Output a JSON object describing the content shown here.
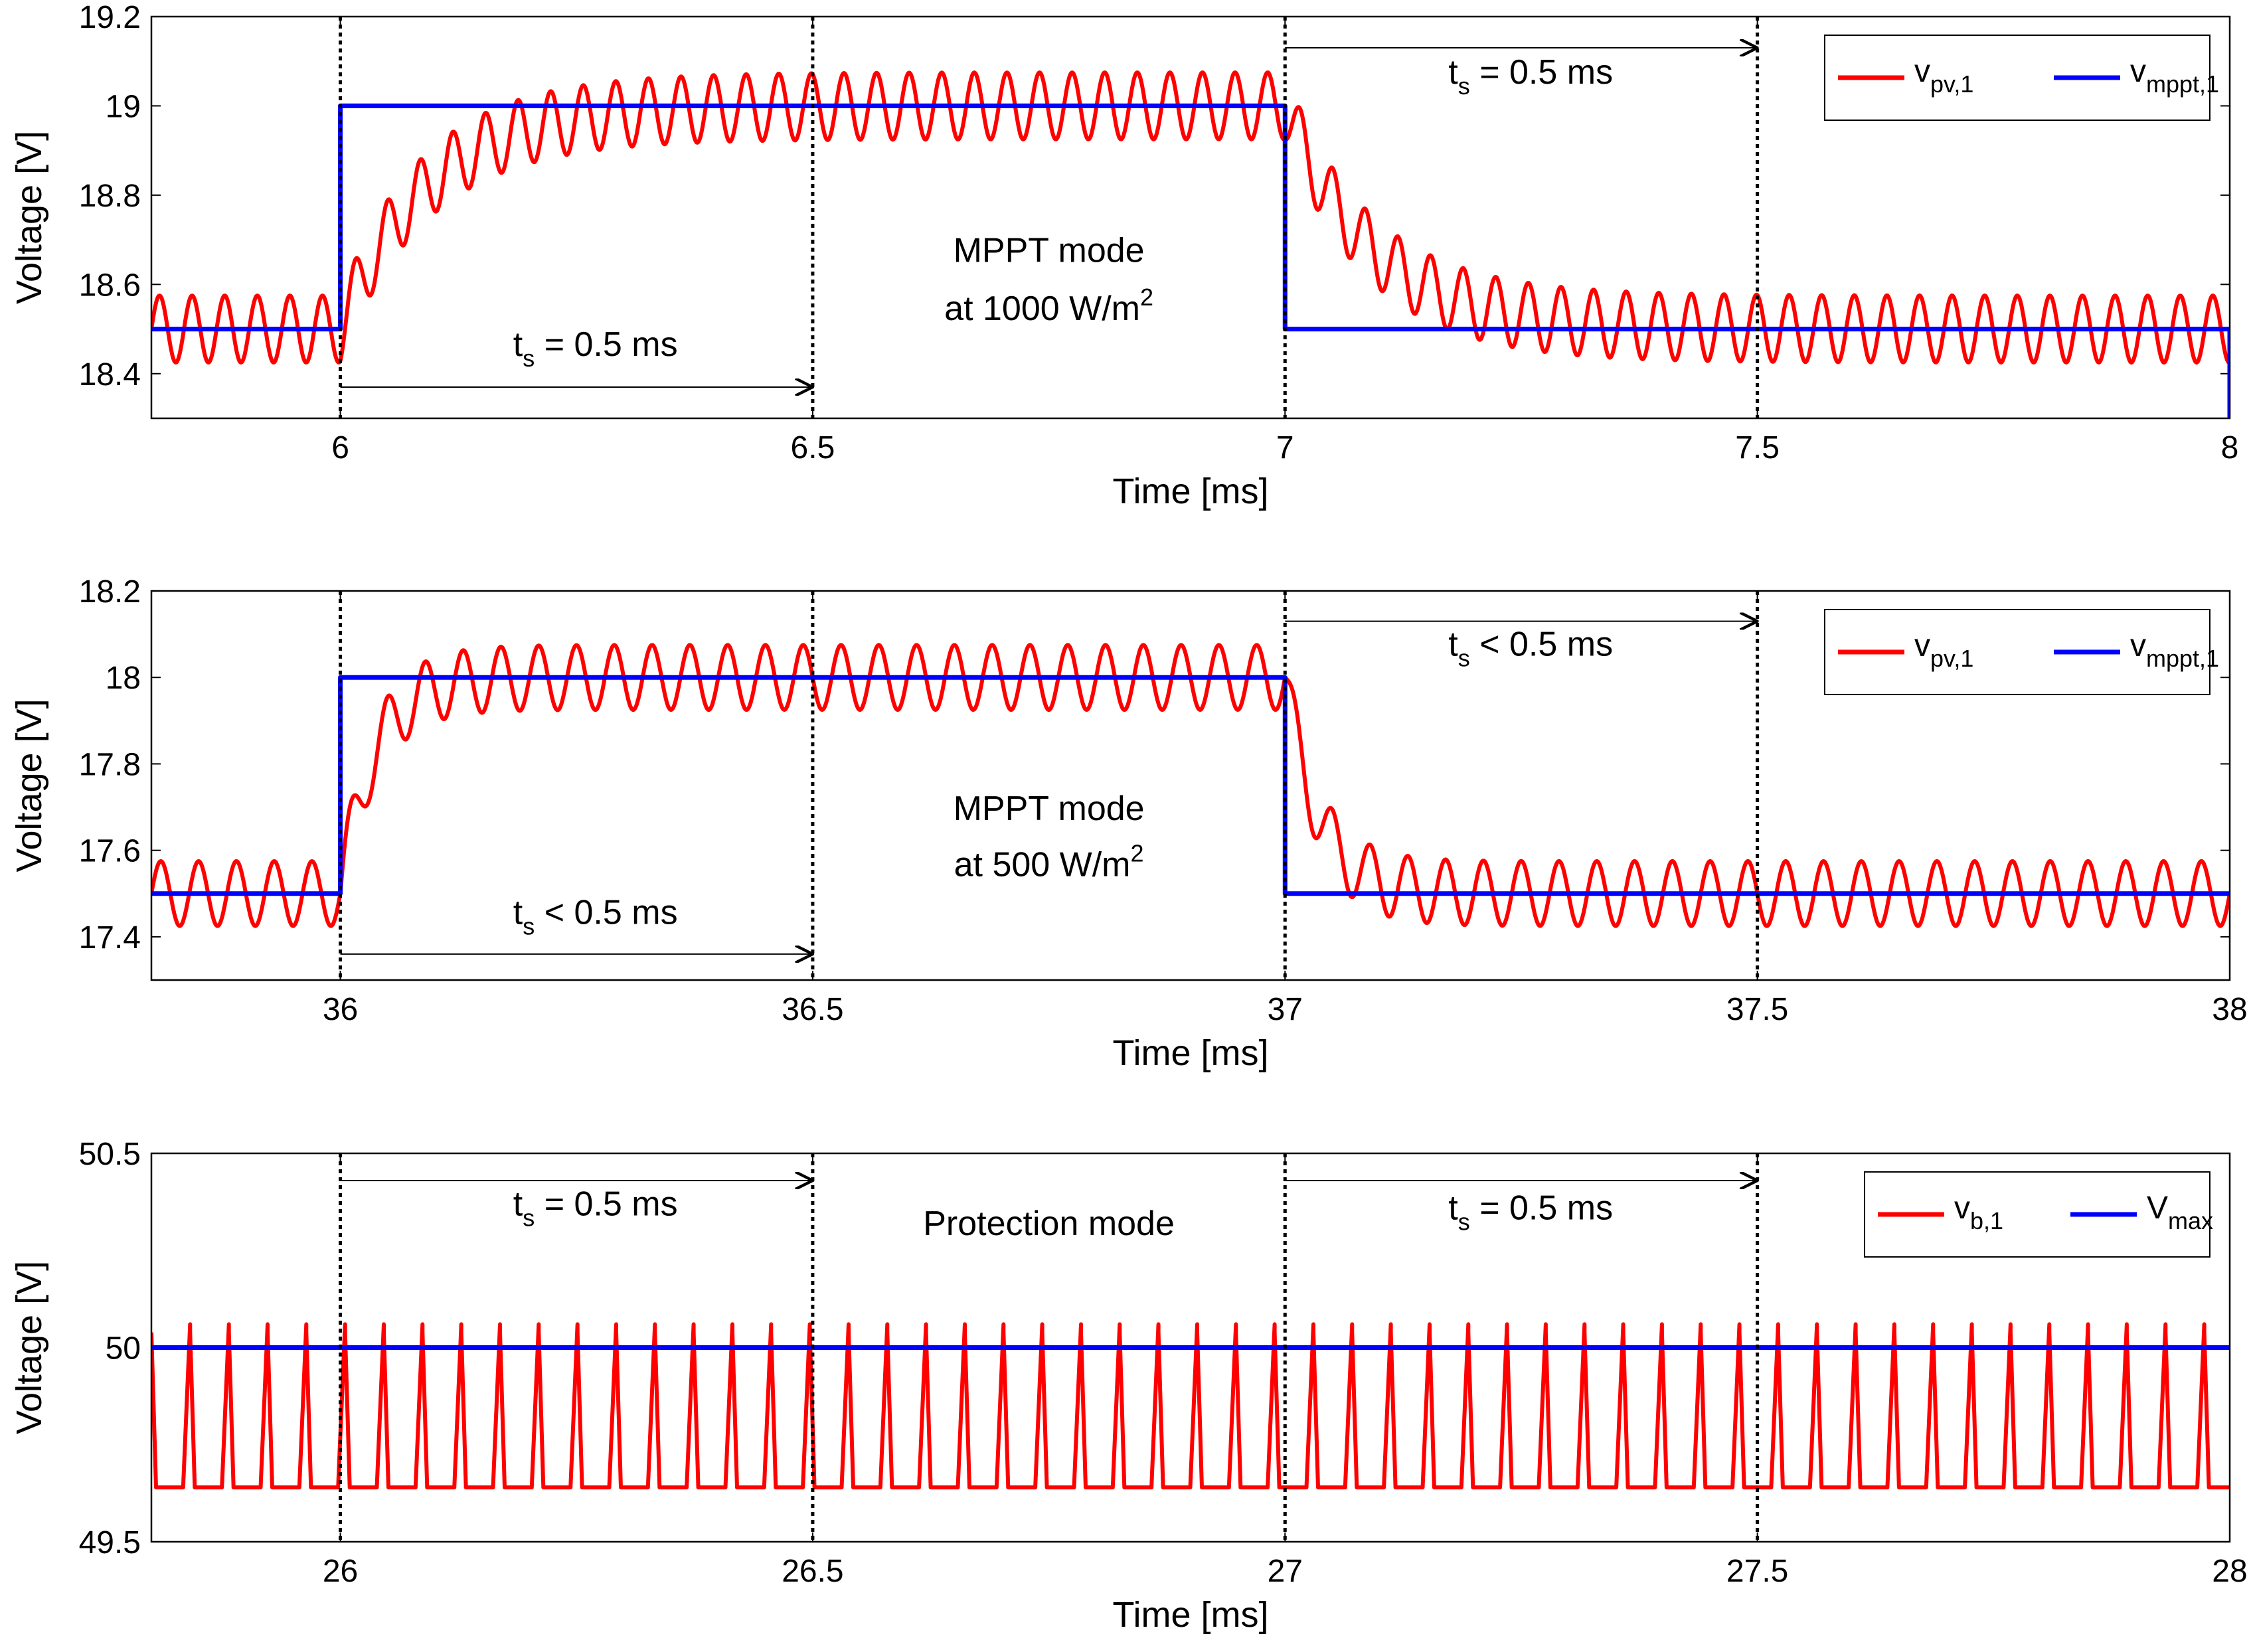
{
  "chart_data": [
    {
      "type": "line",
      "panel": "top",
      "xlabel": "Time [ms]",
      "ylabel": "Voltage [V]",
      "xlim": [
        5.8,
        8.0
      ],
      "ylim": [
        18.3,
        19.2
      ],
      "xticks": [
        6,
        6.5,
        7,
        7.5,
        8
      ],
      "xtick_labels": [
        "6",
        "6.5",
        "7",
        "7.5",
        "8"
      ],
      "yticks": [
        18.4,
        18.6,
        18.8,
        19.0,
        19.2
      ],
      "ytick_labels": [
        "18.4",
        "18.6",
        "18.8",
        "19",
        "19.2"
      ],
      "vlines": [
        6,
        6.5,
        7,
        7.5
      ],
      "legend": {
        "position": "top-right",
        "entries": [
          {
            "base": "v",
            "sub": "pv,1",
            "color": "#ff0000"
          },
          {
            "base": "v",
            "sub": "mppt,1",
            "color": "#0000ff"
          }
        ]
      },
      "series": [
        {
          "name": "v_pv,1",
          "color": "#ff0000",
          "kind": "oscillation",
          "steps": [
            {
              "t": 5.8,
              "v": 18.5
            },
            {
              "t": 6.0,
              "v": 19.0
            },
            {
              "t": 7.0,
              "v": 18.5
            }
          ],
          "amplitude": 0.075,
          "period_ms": 0.0345,
          "tau_ms": 0.09,
          "start_level": 18.5
        },
        {
          "name": "v_mppt,1",
          "color": "#0000ff",
          "kind": "step",
          "points": [
            [
              5.8,
              18.5
            ],
            [
              6.0,
              18.5
            ],
            [
              6.0,
              19.0
            ],
            [
              7.0,
              19.0
            ],
            [
              7.0,
              18.5
            ],
            [
              8.0,
              18.5
            ],
            [
              8.0,
              18.3
            ]
          ]
        }
      ],
      "annotations": [
        {
          "id": "ts1",
          "base": "t",
          "sub": "s",
          "rest": " = 0.5 ms",
          "arrow_from": 6.0,
          "arrow_to": 6.5,
          "arrow_y": 18.37,
          "text_x": 6.27,
          "text_y": 18.44
        },
        {
          "id": "ts2",
          "base": "t",
          "sub": "s",
          "rest": " = 0.5 ms",
          "arrow_from": 7.0,
          "arrow_to": 7.5,
          "arrow_y": 19.13,
          "text_x": 7.26,
          "text_y": 19.05
        },
        {
          "id": "mode1",
          "line1": "MPPT mode",
          "line2": "at 1000 W/m",
          "sup": "2",
          "text_x": 6.75,
          "text_y1": 18.65,
          "text_y2": 18.52
        }
      ]
    },
    {
      "type": "line",
      "panel": "middle",
      "xlabel": "Time [ms]",
      "ylabel": "Voltage [V]",
      "xlim": [
        35.8,
        38.0
      ],
      "ylim": [
        17.3,
        18.2
      ],
      "xticks": [
        36,
        36.5,
        37,
        37.5,
        38
      ],
      "xtick_labels": [
        "36",
        "36.5",
        "37",
        "37.5",
        "38"
      ],
      "yticks": [
        17.4,
        17.6,
        17.8,
        18.0,
        18.2
      ],
      "ytick_labels": [
        "17.4",
        "17.6",
        "17.8",
        "18",
        "18.2"
      ],
      "vlines": [
        36,
        36.5,
        37,
        37.5
      ],
      "legend": {
        "position": "top-right",
        "entries": [
          {
            "base": "v",
            "sub": "pv,1",
            "color": "#ff0000"
          },
          {
            "base": "v",
            "sub": "mppt,1",
            "color": "#0000ff"
          }
        ]
      },
      "series": [
        {
          "name": "v_pv,1",
          "color": "#ff0000",
          "kind": "oscillation",
          "steps": [
            {
              "t": 35.8,
              "v": 17.5
            },
            {
              "t": 36.0,
              "v": 18.0
            },
            {
              "t": 37.0,
              "v": 17.5
            }
          ],
          "amplitude": 0.075,
          "period_ms": 0.04,
          "tau_ms": 0.035,
          "start_level": 17.5
        },
        {
          "name": "v_mppt,1",
          "color": "#0000ff",
          "kind": "step",
          "points": [
            [
              35.8,
              17.5
            ],
            [
              36.0,
              17.5
            ],
            [
              36.0,
              18.0
            ],
            [
              37.0,
              18.0
            ],
            [
              37.0,
              17.5
            ],
            [
              38.0,
              17.5
            ]
          ]
        }
      ],
      "annotations": [
        {
          "id": "ts3",
          "base": "t",
          "sub": "s",
          "rest": " < 0.5 ms",
          "arrow_from": 36.0,
          "arrow_to": 36.5,
          "arrow_y": 17.36,
          "text_x": 36.27,
          "text_y": 17.43
        },
        {
          "id": "ts4",
          "base": "t",
          "sub": "s",
          "rest": " < 0.5 ms",
          "arrow_from": 37.0,
          "arrow_to": 37.5,
          "arrow_y": 18.13,
          "text_x": 37.26,
          "text_y": 18.05
        },
        {
          "id": "mode2",
          "line1": "MPPT mode",
          "line2": "at 500 W/m",
          "sup": "2",
          "text_x": 36.75,
          "text_y1": 17.67,
          "text_y2": 17.54
        }
      ]
    },
    {
      "type": "line",
      "panel": "bottom",
      "xlabel": "Time [ms]",
      "ylabel": "Voltage [V]",
      "xlim": [
        25.8,
        28.0
      ],
      "ylim": [
        49.5,
        50.5
      ],
      "xticks": [
        26,
        26.5,
        27,
        27.5,
        28
      ],
      "xtick_labels": [
        "26",
        "26.5",
        "27",
        "27.5",
        "28"
      ],
      "yticks": [
        49.5,
        50.0,
        50.5
      ],
      "ytick_labels": [
        "49.5",
        "50",
        "50.5"
      ],
      "vlines": [
        26,
        26.5,
        27,
        27.5
      ],
      "legend": {
        "position": "top-right",
        "entries": [
          {
            "base": "v",
            "sub": "b,1",
            "color": "#ff0000"
          },
          {
            "base": "V",
            "sub": "max",
            "color": "#0000ff"
          }
        ]
      },
      "series": [
        {
          "name": "v_b,1",
          "color": "#ff0000",
          "kind": "sawtooth",
          "period_ms": 0.041,
          "mean": 49.85,
          "amplitude": 0.21
        },
        {
          "name": "V_max",
          "color": "#0000ff",
          "kind": "step",
          "points": [
            [
              25.8,
              50.0
            ],
            [
              28.0,
              50.0
            ]
          ]
        }
      ],
      "annotations": [
        {
          "id": "ts5",
          "base": "t",
          "sub": "s",
          "rest": " = 0.5 ms",
          "arrow_from": 26.0,
          "arrow_to": 26.5,
          "arrow_y": 50.43,
          "text_x": 26.27,
          "text_y": 50.34
        },
        {
          "id": "ts6",
          "base": "t",
          "sub": "s",
          "rest": " = 0.5 ms",
          "arrow_from": 27.0,
          "arrow_to": 27.5,
          "arrow_y": 50.43,
          "text_x": 27.26,
          "text_y": 50.33
        },
        {
          "id": "mode3",
          "line1": "Protection mode",
          "text_x": 26.75,
          "text_y1": 50.29
        }
      ]
    }
  ]
}
